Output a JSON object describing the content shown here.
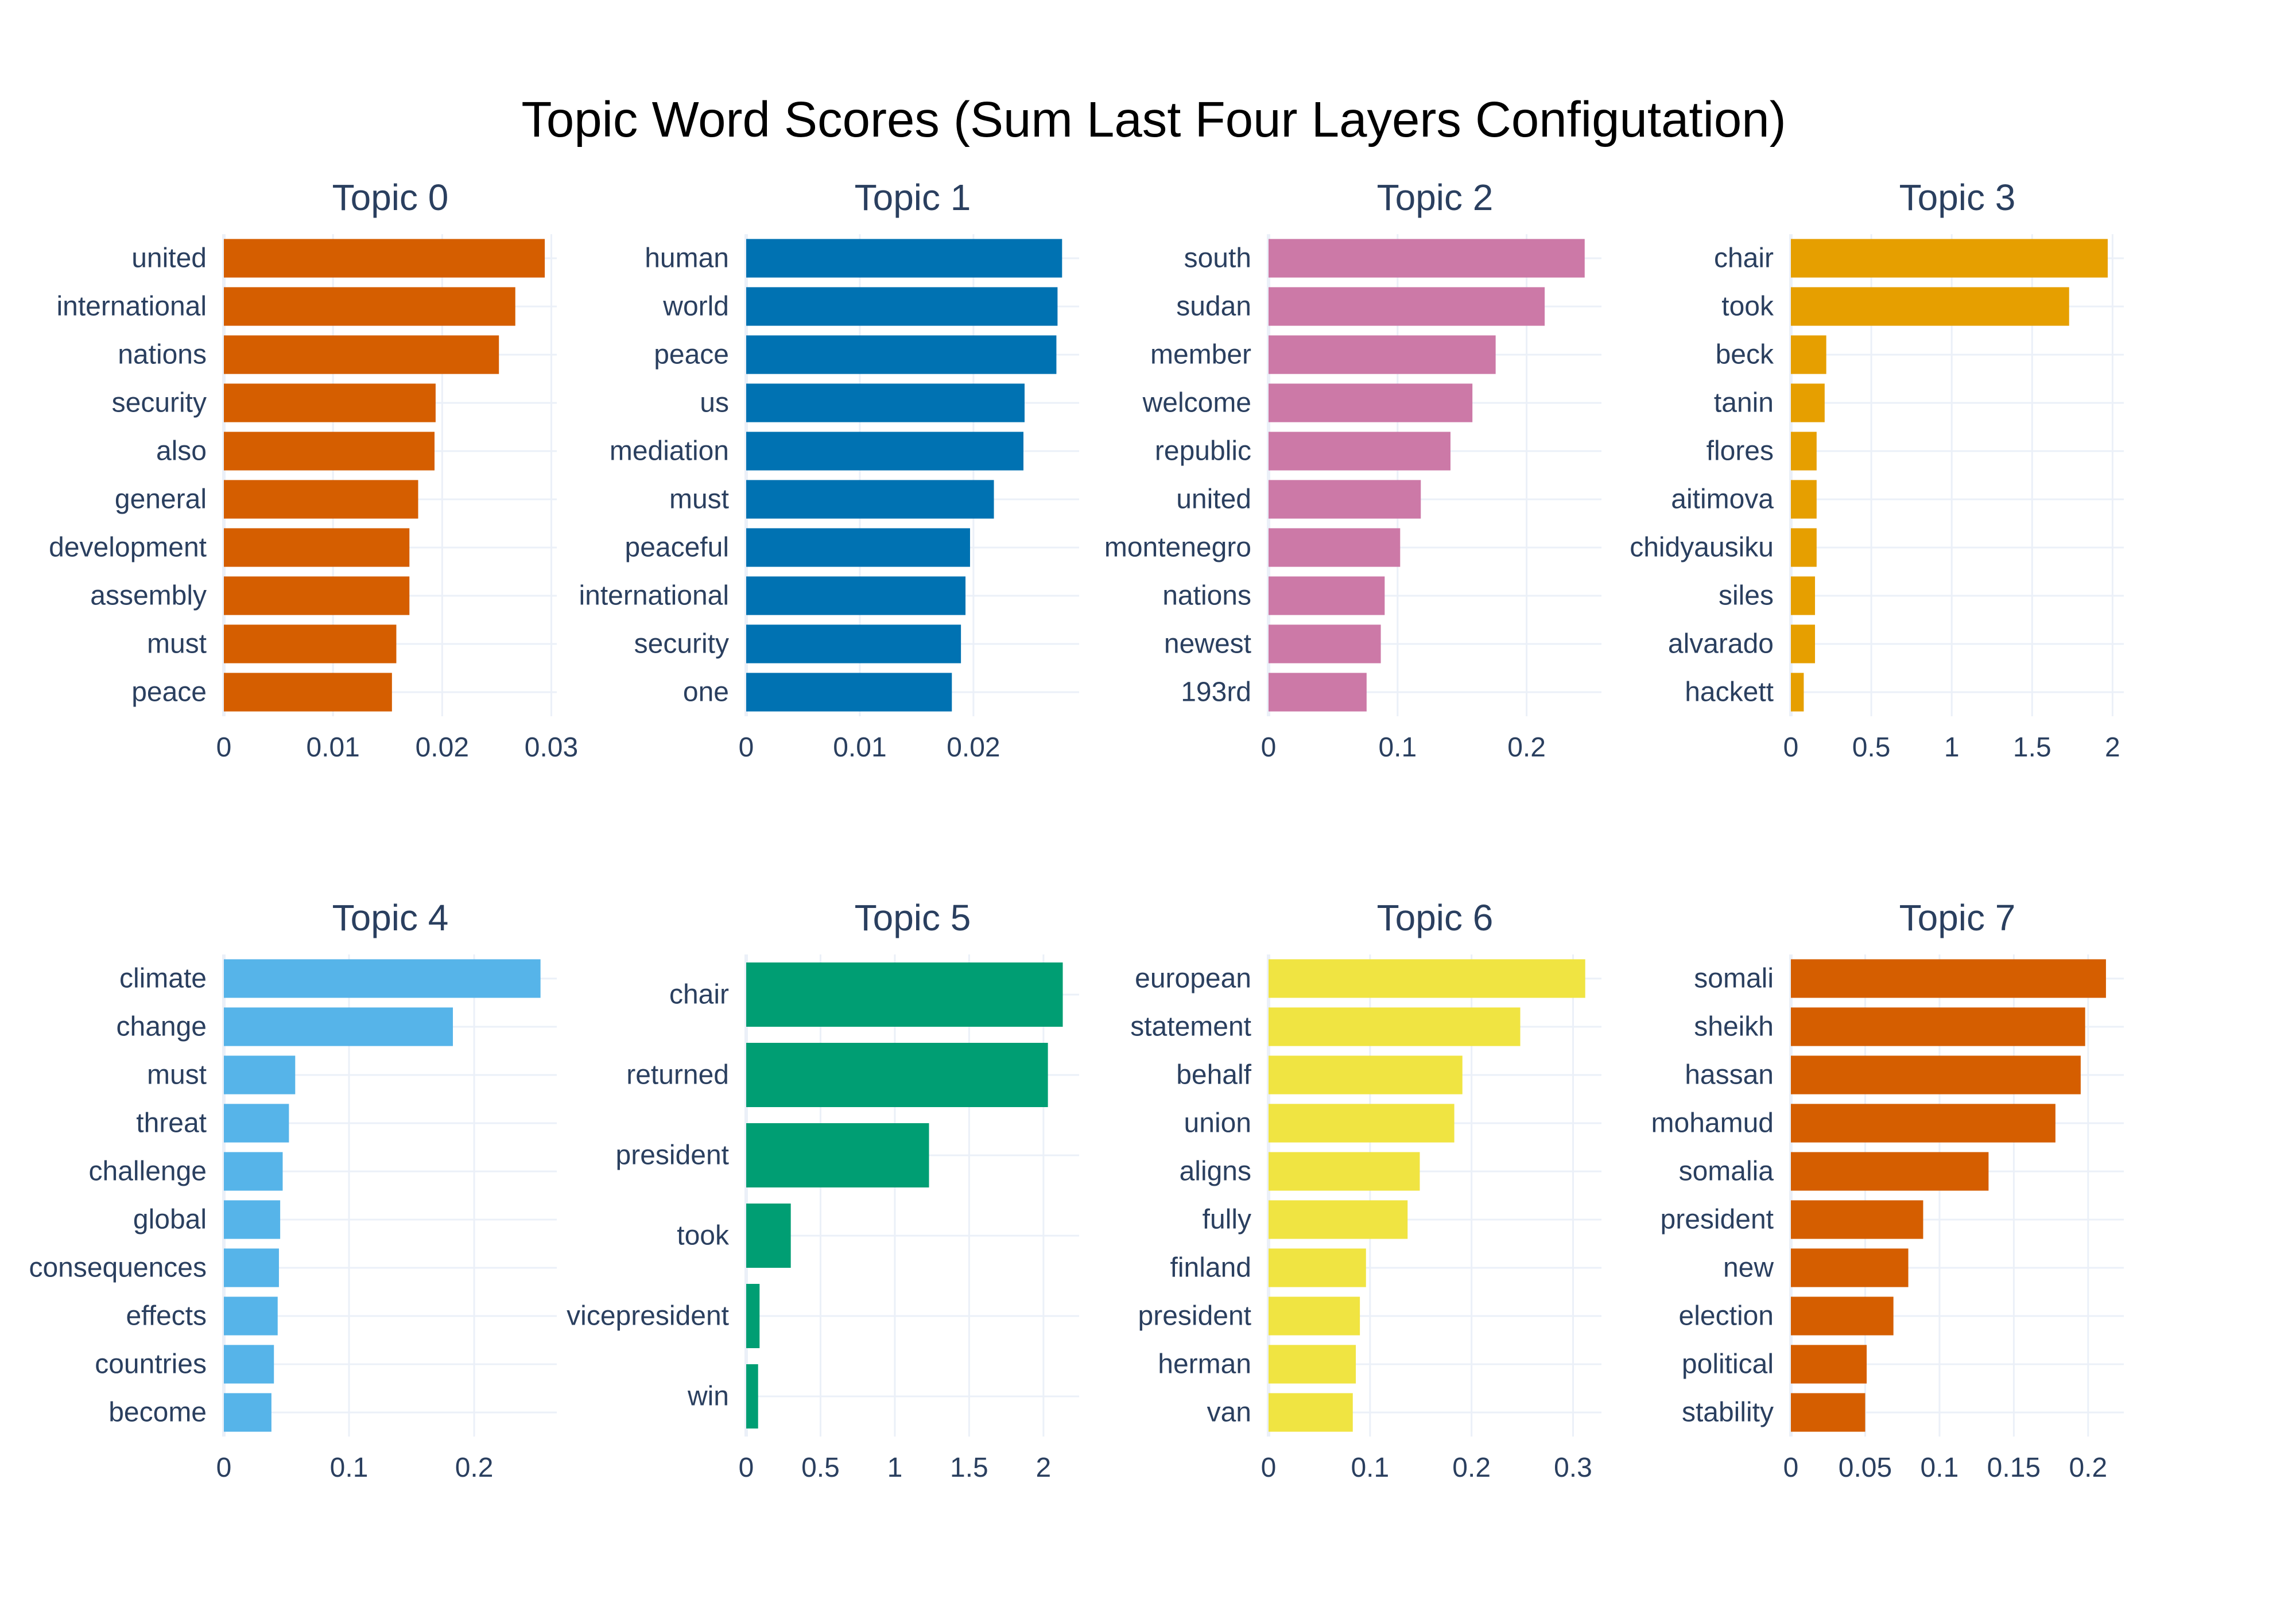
{
  "title": "Topic Word Scores (Sum Last Four Layers Configutation)",
  "colors": {
    "text": "#2a3f5f",
    "grid": "#ebf0f8",
    "title": "#000000"
  },
  "chart_data": [
    {
      "type": "bar",
      "orientation": "horizontal",
      "grid": true,
      "title": "Topic 0",
      "color": "#D55E00",
      "categories": [
        "united",
        "international",
        "nations",
        "security",
        "also",
        "general",
        "development",
        "assembly",
        "must",
        "peace"
      ],
      "values": [
        0.0294,
        0.0267,
        0.0252,
        0.0194,
        0.0193,
        0.0178,
        0.017,
        0.017,
        0.0158,
        0.0154
      ],
      "xlim": [
        0,
        0.0305
      ],
      "ticks": [
        0,
        0.01,
        0.02,
        0.03
      ],
      "tick_labels": [
        "0",
        "0.01",
        "0.02",
        "0.03"
      ]
    },
    {
      "type": "bar",
      "orientation": "horizontal",
      "grid": true,
      "title": "Topic 1",
      "color": "#0072B2",
      "categories": [
        "human",
        "world",
        "peace",
        "us",
        "mediation",
        "must",
        "peaceful",
        "international",
        "security",
        "one"
      ],
      "values": [
        0.0278,
        0.0274,
        0.0273,
        0.0245,
        0.0244,
        0.0218,
        0.0197,
        0.0193,
        0.0189,
        0.0181
      ],
      "xlim": [
        0,
        0.0293
      ],
      "ticks": [
        0,
        0.01,
        0.02
      ],
      "tick_labels": [
        "0",
        "0.01",
        "0.02"
      ]
    },
    {
      "type": "bar",
      "orientation": "horizontal",
      "grid": true,
      "title": "Topic 2",
      "color": "#CC79A7",
      "categories": [
        "south",
        "sudan",
        "member",
        "welcome",
        "republic",
        "united",
        "montenegro",
        "nations",
        "newest",
        "193rd"
      ],
      "values": [
        0.245,
        0.214,
        0.176,
        0.158,
        0.141,
        0.118,
        0.102,
        0.09,
        0.087,
        0.076
      ],
      "xlim": [
        0,
        0.258
      ],
      "ticks": [
        0,
        0.1,
        0.2
      ],
      "tick_labels": [
        "0",
        "0.1",
        "0.2"
      ]
    },
    {
      "type": "bar",
      "orientation": "horizontal",
      "grid": true,
      "title": "Topic 3",
      "color": "#E69F00",
      "categories": [
        "chair",
        "took",
        "beck",
        "tanin",
        "flores",
        "aitimova",
        "chidyausiku",
        "siles",
        "alvarado",
        "hackett"
      ],
      "values": [
        1.97,
        1.73,
        0.22,
        0.21,
        0.16,
        0.16,
        0.16,
        0.15,
        0.15,
        0.08
      ],
      "xlim": [
        0,
        2.07
      ],
      "ticks": [
        0,
        0.5,
        1,
        1.5,
        2
      ],
      "tick_labels": [
        "0",
        "0.5",
        "1",
        "1.5",
        "2"
      ]
    },
    {
      "type": "bar",
      "orientation": "horizontal",
      "grid": true,
      "title": "Topic 4",
      "color": "#56B4E9",
      "categories": [
        "climate",
        "change",
        "must",
        "threat",
        "challenge",
        "global",
        "consequences",
        "effects",
        "countries",
        "become"
      ],
      "values": [
        0.253,
        0.183,
        0.057,
        0.052,
        0.047,
        0.045,
        0.044,
        0.043,
        0.04,
        0.038
      ],
      "xlim": [
        0,
        0.266
      ],
      "ticks": [
        0,
        0.1,
        0.2
      ],
      "tick_labels": [
        "0",
        "0.1",
        "0.2"
      ]
    },
    {
      "type": "bar",
      "orientation": "horizontal",
      "grid": true,
      "title": "Topic 5",
      "color": "#009E73",
      "categories": [
        "chair",
        "returned",
        "president",
        "took",
        "vicepresident",
        "win"
      ],
      "values": [
        2.13,
        2.03,
        1.23,
        0.3,
        0.09,
        0.08
      ],
      "xlim": [
        0,
        2.24
      ],
      "ticks": [
        0,
        0.5,
        1,
        1.5,
        2
      ],
      "tick_labels": [
        "0",
        "0.5",
        "1",
        "1.5",
        "2"
      ]
    },
    {
      "type": "bar",
      "orientation": "horizontal",
      "grid": true,
      "title": "Topic 6",
      "color": "#F0E442",
      "categories": [
        "european",
        "statement",
        "behalf",
        "union",
        "aligns",
        "fully",
        "finland",
        "president",
        "herman",
        "van"
      ],
      "values": [
        0.312,
        0.248,
        0.191,
        0.183,
        0.149,
        0.137,
        0.096,
        0.09,
        0.086,
        0.083
      ],
      "xlim": [
        0,
        0.328
      ],
      "ticks": [
        0,
        0.1,
        0.2,
        0.3
      ],
      "tick_labels": [
        "0",
        "0.1",
        "0.2",
        "0.3"
      ]
    },
    {
      "type": "bar",
      "orientation": "horizontal",
      "grid": true,
      "title": "Topic 7",
      "color": "#D55E00",
      "categories": [
        "somali",
        "sheikh",
        "hassan",
        "mohamud",
        "somalia",
        "president",
        "new",
        "election",
        "political",
        "stability"
      ],
      "values": [
        0.212,
        0.198,
        0.195,
        0.178,
        0.133,
        0.089,
        0.079,
        0.069,
        0.051,
        0.05
      ],
      "xlim": [
        0,
        0.224
      ],
      "ticks": [
        0,
        0.05,
        0.1,
        0.15,
        0.2
      ],
      "tick_labels": [
        "0",
        "0.05",
        "0.1",
        "0.15",
        "0.2"
      ]
    }
  ]
}
